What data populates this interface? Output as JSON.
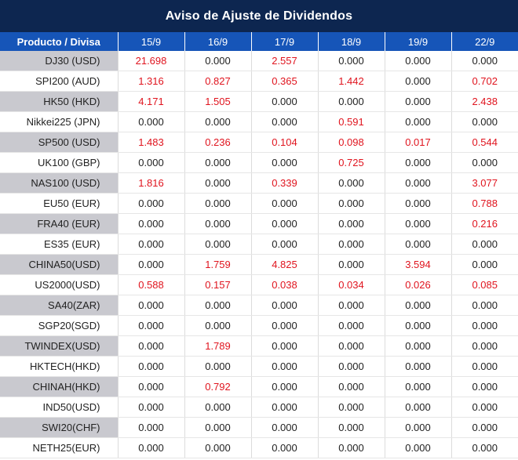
{
  "title": "Aviso de Ajuste de Dividendos",
  "header": {
    "product_label": "Producto / Divisa",
    "dates": [
      "15/9",
      "16/9",
      "17/9",
      "18/9",
      "19/9",
      "22/9"
    ]
  },
  "colors": {
    "title_bg": "#0d2650",
    "header_bg": "#1655b8",
    "shaded_cell_bg": "#c9c9cf",
    "positive_value": "#e0141e",
    "zero_value": "#222222"
  },
  "rows": [
    {
      "product": "DJ30 (USD)",
      "values": [
        "21.698",
        "0.000",
        "2.557",
        "0.000",
        "0.000",
        "0.000"
      ]
    },
    {
      "product": "SPI200 (AUD)",
      "values": [
        "1.316",
        "0.827",
        "0.365",
        "1.442",
        "0.000",
        "0.702"
      ]
    },
    {
      "product": "HK50 (HKD)",
      "values": [
        "4.171",
        "1.505",
        "0.000",
        "0.000",
        "0.000",
        "2.438"
      ]
    },
    {
      "product": "Nikkei225 (JPN)",
      "values": [
        "0.000",
        "0.000",
        "0.000",
        "0.591",
        "0.000",
        "0.000"
      ]
    },
    {
      "product": "SP500 (USD)",
      "values": [
        "1.483",
        "0.236",
        "0.104",
        "0.098",
        "0.017",
        "0.544"
      ]
    },
    {
      "product": "UK100 (GBP)",
      "values": [
        "0.000",
        "0.000",
        "0.000",
        "0.725",
        "0.000",
        "0.000"
      ]
    },
    {
      "product": "NAS100 (USD)",
      "values": [
        "1.816",
        "0.000",
        "0.339",
        "0.000",
        "0.000",
        "3.077"
      ]
    },
    {
      "product": "EU50 (EUR)",
      "values": [
        "0.000",
        "0.000",
        "0.000",
        "0.000",
        "0.000",
        "0.788"
      ]
    },
    {
      "product": "FRA40 (EUR)",
      "values": [
        "0.000",
        "0.000",
        "0.000",
        "0.000",
        "0.000",
        "0.216"
      ]
    },
    {
      "product": "ES35 (EUR)",
      "values": [
        "0.000",
        "0.000",
        "0.000",
        "0.000",
        "0.000",
        "0.000"
      ]
    },
    {
      "product": "CHINA50(USD)",
      "values": [
        "0.000",
        "1.759",
        "4.825",
        "0.000",
        "3.594",
        "0.000"
      ]
    },
    {
      "product": "US2000(USD)",
      "values": [
        "0.588",
        "0.157",
        "0.038",
        "0.034",
        "0.026",
        "0.085"
      ]
    },
    {
      "product": "SA40(ZAR)",
      "values": [
        "0.000",
        "0.000",
        "0.000",
        "0.000",
        "0.000",
        "0.000"
      ]
    },
    {
      "product": "SGP20(SGD)",
      "values": [
        "0.000",
        "0.000",
        "0.000",
        "0.000",
        "0.000",
        "0.000"
      ]
    },
    {
      "product": "TWINDEX(USD)",
      "values": [
        "0.000",
        "1.789",
        "0.000",
        "0.000",
        "0.000",
        "0.000"
      ]
    },
    {
      "product": "HKTECH(HKD)",
      "values": [
        "0.000",
        "0.000",
        "0.000",
        "0.000",
        "0.000",
        "0.000"
      ]
    },
    {
      "product": "CHINAH(HKD)",
      "values": [
        "0.000",
        "0.792",
        "0.000",
        "0.000",
        "0.000",
        "0.000"
      ]
    },
    {
      "product": "IND50(USD)",
      "values": [
        "0.000",
        "0.000",
        "0.000",
        "0.000",
        "0.000",
        "0.000"
      ]
    },
    {
      "product": "SWI20(CHF)",
      "values": [
        "0.000",
        "0.000",
        "0.000",
        "0.000",
        "0.000",
        "0.000"
      ]
    },
    {
      "product": "NETH25(EUR)",
      "values": [
        "0.000",
        "0.000",
        "0.000",
        "0.000",
        "0.000",
        "0.000"
      ]
    }
  ]
}
